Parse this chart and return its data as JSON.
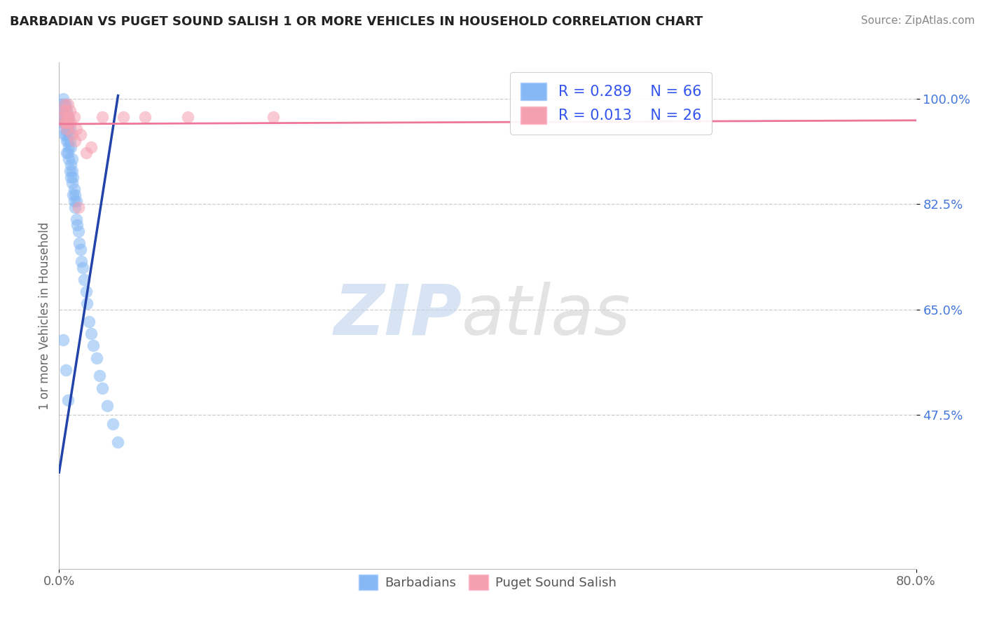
{
  "title": "BARBADIAN VS PUGET SOUND SALISH 1 OR MORE VEHICLES IN HOUSEHOLD CORRELATION CHART",
  "source": "Source: ZipAtlas.com",
  "ylabel": "1 or more Vehicles in Household",
  "xlim": [
    0.0,
    0.8
  ],
  "ylim": [
    0.22,
    1.06
  ],
  "xtick_positions": [
    0.0,
    0.8
  ],
  "xticklabels": [
    "0.0%",
    "80.0%"
  ],
  "ytick_positions": [
    0.475,
    0.65,
    0.825,
    1.0
  ],
  "ytick_labels": [
    "47.5%",
    "65.0%",
    "82.5%",
    "100.0%"
  ],
  "legend_r1": "R = 0.289",
  "legend_n1": "N = 66",
  "legend_r2": "R = 0.013",
  "legend_n2": "N = 26",
  "blue_color": "#85b8f5",
  "pink_color": "#f5a0b0",
  "blue_line_color": "#2244aa",
  "pink_line_color": "#ee7799",
  "watermark_zip": "ZIP",
  "watermark_atlas": "atlas",
  "blue_x": [
    0.002,
    0.003,
    0.003,
    0.004,
    0.004,
    0.004,
    0.005,
    0.005,
    0.005,
    0.005,
    0.005,
    0.006,
    0.006,
    0.006,
    0.006,
    0.007,
    0.007,
    0.007,
    0.007,
    0.007,
    0.008,
    0.008,
    0.008,
    0.008,
    0.009,
    0.009,
    0.009,
    0.009,
    0.01,
    0.01,
    0.01,
    0.011,
    0.011,
    0.011,
    0.012,
    0.012,
    0.012,
    0.013,
    0.013,
    0.014,
    0.014,
    0.015,
    0.015,
    0.016,
    0.016,
    0.017,
    0.018,
    0.019,
    0.02,
    0.021,
    0.022,
    0.023,
    0.025,
    0.026,
    0.028,
    0.03,
    0.032,
    0.035,
    0.038,
    0.04,
    0.045,
    0.05,
    0.055,
    0.004,
    0.006,
    0.008
  ],
  "blue_y": [
    0.98,
    0.99,
    0.97,
    1.0,
    0.98,
    0.96,
    0.99,
    0.97,
    0.96,
    0.95,
    0.94,
    0.99,
    0.97,
    0.96,
    0.94,
    0.98,
    0.97,
    0.95,
    0.93,
    0.91,
    0.97,
    0.95,
    0.93,
    0.91,
    0.96,
    0.94,
    0.92,
    0.9,
    0.95,
    0.93,
    0.88,
    0.92,
    0.89,
    0.87,
    0.9,
    0.88,
    0.86,
    0.87,
    0.84,
    0.85,
    0.83,
    0.84,
    0.82,
    0.83,
    0.8,
    0.79,
    0.78,
    0.76,
    0.75,
    0.73,
    0.72,
    0.7,
    0.68,
    0.66,
    0.63,
    0.61,
    0.59,
    0.57,
    0.54,
    0.52,
    0.49,
    0.46,
    0.43,
    0.6,
    0.55,
    0.5
  ],
  "pink_x": [
    0.003,
    0.004,
    0.005,
    0.005,
    0.006,
    0.006,
    0.007,
    0.007,
    0.008,
    0.008,
    0.009,
    0.01,
    0.011,
    0.012,
    0.014,
    0.015,
    0.016,
    0.018,
    0.02,
    0.025,
    0.03,
    0.04,
    0.06,
    0.08,
    0.12,
    0.2
  ],
  "pink_y": [
    0.97,
    0.98,
    0.99,
    0.96,
    0.98,
    0.96,
    0.97,
    0.95,
    0.99,
    0.96,
    0.97,
    0.98,
    0.96,
    0.94,
    0.97,
    0.93,
    0.95,
    0.82,
    0.94,
    0.91,
    0.92,
    0.97,
    0.97,
    0.97,
    0.97,
    0.97
  ],
  "blue_trend_x": [
    0.0,
    0.055
  ],
  "blue_trend_y": [
    0.38,
    1.005
  ],
  "pink_trend_x": [
    0.0,
    0.8
  ],
  "pink_trend_y": [
    0.958,
    0.964
  ]
}
